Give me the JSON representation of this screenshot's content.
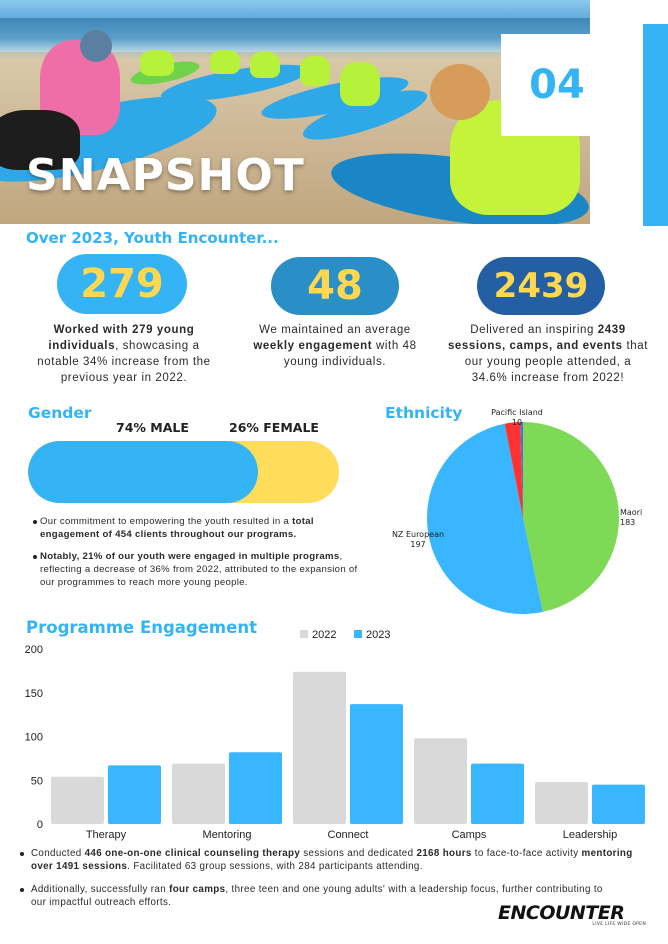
{
  "hero": {
    "title": "SNAPSHOT",
    "page_number": "04"
  },
  "intro": "Over 2023, Youth Encounter...",
  "stats": [
    {
      "value": "279",
      "text_html": "<b>Worked with 279 young individuals</b>, showcasing a notable 34% increase from the previous year in 2022."
    },
    {
      "value": "48",
      "text_html": "We maintained an average <b>weekly engagement</b> with 48 young individuals."
    },
    {
      "value": "2439",
      "text_html": "Delivered an inspiring <b>2439 sessions, camps, and events</b> that our young people attended, a 34.6% increase from 2022!"
    }
  ],
  "gender": {
    "title": "Gender",
    "male_label": "74% MALE",
    "female_label": "26% FEMALE",
    "male_fraction": 0.74,
    "bullets_html": [
      "Our commitment to empowering the youth resulted in a <b>total engagement of 454 clients throughout our programs.</b>",
      "<b>Notably, 21% of our youth were engaged in multiple programs</b>, reflecting a decrease of 36% from 2022, attributed to the expansion of our programmes to reach more young people."
    ]
  },
  "ethnicity": {
    "title": "Ethnicity",
    "slices": [
      {
        "name": "Maori",
        "value": 183,
        "color": "#7ed957"
      },
      {
        "name": "NZ European",
        "value": 197,
        "color": "#38b6ff"
      },
      {
        "name": "Pacific Island",
        "value": 10,
        "color": "#ff3131"
      },
      {
        "name": "",
        "value": 2,
        "color": "#5e6ec7"
      }
    ]
  },
  "programme": {
    "title": "Programme Engagement",
    "colors": {
      "2022": "#d9d9d9",
      "2023": "#38b6ff"
    }
  },
  "chart_data": {
    "type": "bar",
    "categories": [
      "Therapy",
      "Mentoring",
      "Connect",
      "Camps",
      "Leadership"
    ],
    "series": [
      {
        "name": "2022",
        "values": [
          54,
          69,
          174,
          98,
          48
        ]
      },
      {
        "name": "2023",
        "values": [
          67,
          82,
          137,
          69,
          45
        ]
      }
    ],
    "ylim": [
      0,
      200
    ],
    "yticks": [
      0,
      50,
      100,
      150,
      200
    ],
    "legend": "top-center",
    "grid": false
  },
  "footer": {
    "bullets_html": [
      "Conducted <b>446 one-on-one clinical counseling therapy</b> sessions and dedicated <b>2168 hours</b> to face-to-face activity <b>mentoring over 1491 sessions</b>. Facilitated 63 group sessions, with 284 participants attending.",
      "Additionally, successfully ran <b>four camps</b>, three teen and one young adults' with a leadership focus, further contributing to our impactful outreach efforts."
    ],
    "logo": "ENCOUNTER",
    "logo_tagline": "LIVE LIFE WIDE OPEN"
  }
}
